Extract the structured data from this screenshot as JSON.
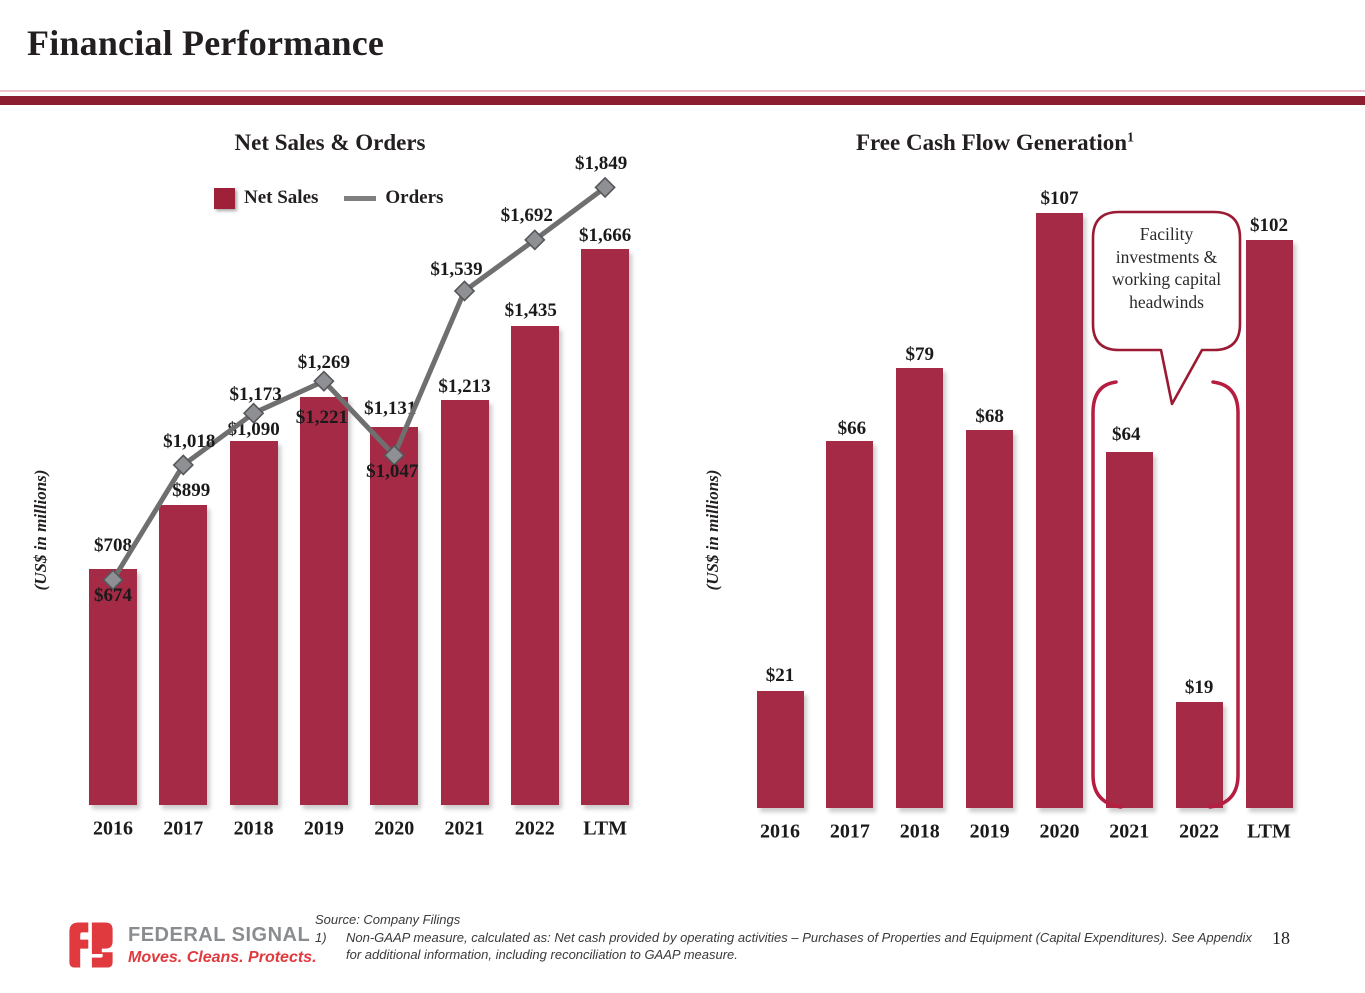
{
  "header": {
    "title": "Financial Performance"
  },
  "left_chart": {
    "title": "Net Sales & Orders",
    "y_axis_label": "(US$ in millions)",
    "legend": {
      "bar_label": "Net Sales",
      "line_label": "Orders"
    }
  },
  "right_chart": {
    "title": "Free Cash Flow Generation",
    "title_superscript": "1",
    "y_axis_label": "(US$ in millions)",
    "callout": {
      "text": "Facility investments & working capital headwinds"
    }
  },
  "chart_data": [
    {
      "type": "bar",
      "title": "Net Sales & Orders",
      "categories": [
        "2016",
        "2017",
        "2018",
        "2019",
        "2020",
        "2021",
        "2022",
        "LTM"
      ],
      "series": [
        {
          "name": "Net Sales",
          "type": "bar",
          "color": "#a52a46",
          "values": [
            708,
            899,
            1090,
            1221,
            1131,
            1213,
            1435,
            1666
          ],
          "value_labels": [
            "$708",
            "$899",
            "$1,090",
            "$1,221",
            "$1,131",
            "$1,213",
            "$1,435",
            "$1,666"
          ]
        },
        {
          "name": "Orders",
          "type": "line",
          "color": "#6f6f6f",
          "marker": "diamond",
          "values": [
            674,
            1018,
            1173,
            1269,
            1047,
            1539,
            1692,
            1849
          ],
          "value_labels": [
            "$674",
            "$1,018",
            "$1,173",
            "$1,269",
            "$1,047",
            "$1,539",
            "$1,692",
            "$1,849"
          ]
        }
      ],
      "ylabel": "(US$ in millions)",
      "ylim": [
        0,
        2000
      ],
      "grid": false,
      "legend_position": "top"
    },
    {
      "type": "bar",
      "title": "Free Cash Flow Generation (1)",
      "categories": [
        "2016",
        "2017",
        "2018",
        "2019",
        "2020",
        "2021",
        "2022",
        "LTM"
      ],
      "series": [
        {
          "name": "Free Cash Flow",
          "type": "bar",
          "color": "#a52a46",
          "values": [
            21,
            66,
            79,
            68,
            107,
            64,
            19,
            102
          ],
          "value_labels": [
            "$21",
            "$66",
            "$79",
            "$68",
            "$107",
            "$64",
            "$19",
            "$102"
          ]
        }
      ],
      "ylabel": "(US$ in millions)",
      "ylim": [
        0,
        120
      ],
      "grid": false,
      "annotations": [
        {
          "type": "callout",
          "text": "Facility investments & working capital headwinds",
          "targets": [
            "2021",
            "2022"
          ]
        },
        {
          "type": "bracket",
          "targets": [
            "2021",
            "2022"
          ]
        }
      ]
    }
  ],
  "footer": {
    "source": "Source: Company Filings",
    "footnote": {
      "number": "1)",
      "text": "Non-GAAP measure, calculated as: Net cash provided by operating activities – Purchases of Properties and Equipment (Capital Expenditures). See Appendix for additional information, including reconciliation to GAAP measure."
    },
    "page_number": "18",
    "logo": {
      "name": "FEDERAL SIGNAL",
      "tagline": "Moves. Cleans. Protects."
    }
  },
  "colors": {
    "bar": "#a52a46",
    "orders_line": "#6f6f6f",
    "marker_fill": "#8f9093",
    "marker_stroke": "#55575a",
    "header_rule": "#8c1d30",
    "header_rule_light": "#efc3cc",
    "callout_border": "#9a1b33",
    "bracket": "#b51e41",
    "logo_red": "#e0393e",
    "logo_gray": "#8a8d8f",
    "text": "#231f20"
  }
}
